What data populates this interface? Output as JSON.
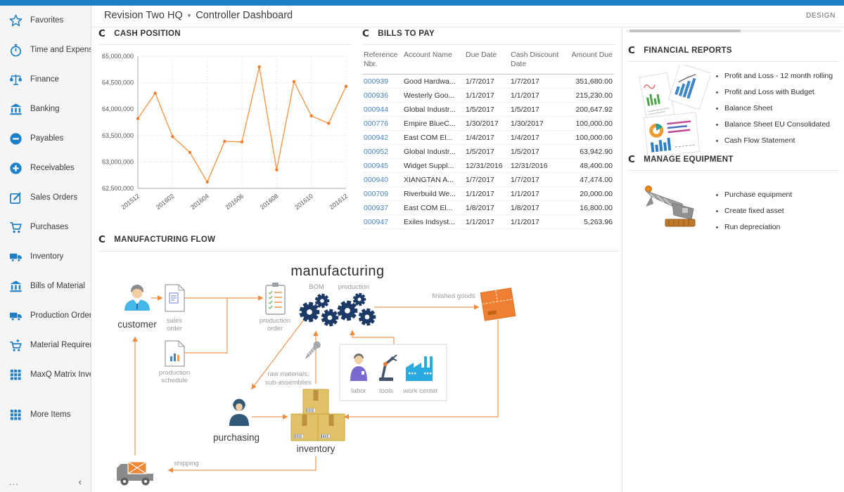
{
  "topbar": {
    "design_label": "DESIGN"
  },
  "header": {
    "company": "Revision Two HQ",
    "caret_icon": "chevron-down-icon",
    "page_title": "Controller Dashboard"
  },
  "sidebar": {
    "items": [
      {
        "label": "Favorites",
        "icon": "star-icon"
      },
      {
        "label": "Time and Expenses",
        "icon": "stopwatch-icon"
      },
      {
        "label": "Finance",
        "icon": "scales-icon"
      },
      {
        "label": "Banking",
        "icon": "bank-icon"
      },
      {
        "label": "Payables",
        "icon": "minus-circle-icon"
      },
      {
        "label": "Receivables",
        "icon": "plus-circle-icon"
      },
      {
        "label": "Sales Orders",
        "icon": "edit-box-icon"
      },
      {
        "label": "Purchases",
        "icon": "cart-icon"
      },
      {
        "label": "Inventory",
        "icon": "truck-icon"
      },
      {
        "label": "Bills of Material",
        "icon": "bank-icon"
      },
      {
        "label": "Production Orders",
        "icon": "truck-icon"
      },
      {
        "label": "Material Requirem...",
        "icon": "cart-plus-icon"
      },
      {
        "label": "MaxQ Matrix Invent...",
        "icon": "grid-icon"
      }
    ],
    "more_item": {
      "label": "More Items",
      "icon": "grid-icon"
    },
    "overflow_label": "...",
    "collapse_icon": "chevron-left-icon"
  },
  "panels": {
    "cash_position": {
      "title": "CASH POSITION"
    },
    "bills_to_pay": {
      "title": "BILLS TO PAY",
      "columns": [
        "Reference Nbr.",
        "Account Name",
        "Due Date",
        "Cash Discount Date",
        "Amount Due"
      ],
      "rows": [
        {
          "ref": "000939",
          "account": "Good Hardwa...",
          "due": "1/7/2017",
          "discount": "1/7/2017",
          "amount": "351,680.00"
        },
        {
          "ref": "000936",
          "account": "Westerly Goo...",
          "due": "1/1/2017",
          "discount": "1/1/2017",
          "amount": "215,230.00"
        },
        {
          "ref": "000944",
          "account": "Global Industr...",
          "due": "1/5/2017",
          "discount": "1/5/2017",
          "amount": "200,647.92"
        },
        {
          "ref": "000776",
          "account": "Empire BlueC...",
          "due": "1/30/2017",
          "discount": "1/30/2017",
          "amount": "100,000.00"
        },
        {
          "ref": "000942",
          "account": "East COM El...",
          "due": "1/4/2017",
          "discount": "1/4/2017",
          "amount": "100,000.00"
        },
        {
          "ref": "000952",
          "account": "Global Industr...",
          "due": "1/5/2017",
          "discount": "1/5/2017",
          "amount": "63,942.90"
        },
        {
          "ref": "000945",
          "account": "Widget Suppl...",
          "due": "12/31/2016",
          "discount": "12/31/2016",
          "amount": "48,400.00"
        },
        {
          "ref": "000940",
          "account": "XIANGTAN A...",
          "due": "1/7/2017",
          "discount": "1/7/2017",
          "amount": "47,474.00"
        },
        {
          "ref": "000709",
          "account": "Riverbuild We...",
          "due": "1/1/2017",
          "discount": "1/1/2017",
          "amount": "20,000.00"
        },
        {
          "ref": "000937",
          "account": "East COM El...",
          "due": "1/8/2017",
          "discount": "1/8/2017",
          "amount": "16,800.00"
        },
        {
          "ref": "000947",
          "account": "Exiles Indsyst...",
          "due": "1/1/2017",
          "discount": "1/1/2017",
          "amount": "5,263.96"
        }
      ]
    },
    "financial_reports": {
      "title": "FINANCIAL REPORTS",
      "links": [
        "Profit and Loss - 12 month rolling",
        "Profit and Loss with Budget",
        "Balance Sheet",
        "Balance Sheet EU Consolidated",
        "Cash Flow Statement"
      ]
    },
    "manage_equipment": {
      "title": "MANAGE EQUIPMENT",
      "links": [
        "Purchase equipment",
        "Create fixed asset",
        "Run depreciation"
      ]
    },
    "manufacturing_flow": {
      "title": "MANUFACTURING FLOW",
      "labels": {
        "manufacturing": "manufacturing",
        "bom": "BOM",
        "production": "production",
        "customer": "customer",
        "sales_order_1": "sales",
        "sales_order_2": "order",
        "production_order_1": "production",
        "production_order_2": "order",
        "production_schedule_1": "production",
        "production_schedule_2": "schedule",
        "raw_materials_1": "raw materials,",
        "raw_materials_2": "sub-assemblies",
        "labor": "labor",
        "tools": "tools",
        "work_center": "work center",
        "purchasing": "purchasing",
        "inventory": "inventory",
        "finished_goods": "finished goods",
        "shipping": "shipping"
      }
    }
  },
  "chart_data": {
    "type": "line",
    "title": "CASH POSITION",
    "categories": [
      "201512",
      "201601",
      "201602",
      "201603",
      "201604",
      "201605",
      "201606",
      "201607",
      "201608",
      "201609",
      "201610",
      "201611",
      "201612"
    ],
    "values": [
      63820000,
      64300000,
      63480000,
      63180000,
      62620000,
      63390000,
      63380000,
      64800000,
      62850000,
      64520000,
      63870000,
      63730000,
      64430000
    ],
    "x_tick_labels": [
      "201512",
      "201602",
      "201604",
      "201606",
      "201608",
      "201610",
      "201612"
    ],
    "ylim": [
      62500000,
      65000000
    ],
    "y_tick_step": 500000,
    "grid": true,
    "line_color": "#f79646",
    "marker_color": "#ed7d31",
    "legend_position": "none"
  },
  "colors": {
    "accent_blue": "#1e80c4",
    "link_blue": "#4a86c8",
    "arrow_orange": "#f08a3c",
    "gear_navy": "#1d3a66"
  }
}
